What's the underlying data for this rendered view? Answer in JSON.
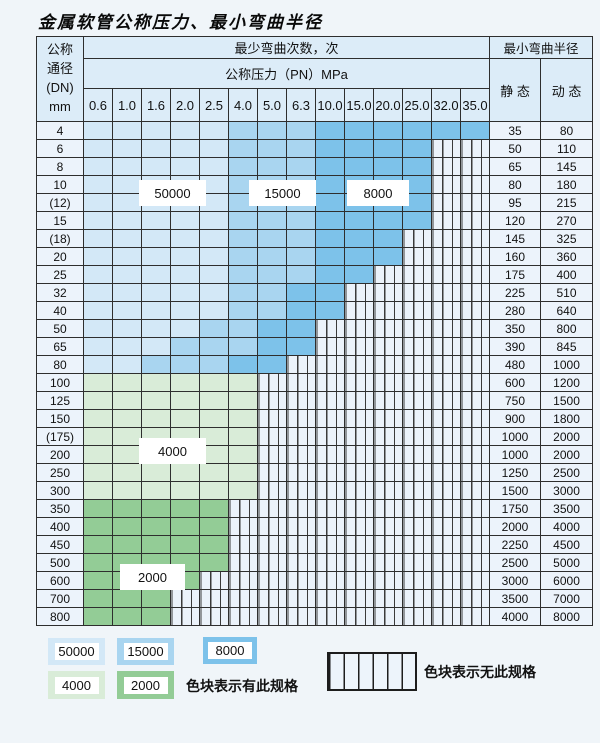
{
  "title": "金属软管公称压力、最小弯曲半径",
  "colors": {
    "v50000": "#d3e8f7",
    "v15000": "#a9d5f0",
    "v8000": "#7dc2ea",
    "v4000": "#d9ecd8",
    "v2000": "#93cc96",
    "hatch_background": "#ebf2fa",
    "grid_line": "#2e2e2e",
    "header_background": "#dcecf8",
    "label_column_background": "#ecf3fb"
  },
  "table": {
    "dn_header_lines": [
      "公称",
      "通径",
      "(DN)",
      "mm"
    ],
    "bend_times_header": "最少弯曲次数，次",
    "pressure_header": "公称压力（PN）MPa",
    "radius_header": "最小弯曲半径",
    "static_header": "静 态",
    "dynamic_header": "动 态",
    "pressures": [
      "0.6",
      "1.0",
      "1.6",
      "2.0",
      "2.5",
      "4.0",
      "5.0",
      "6.3",
      "10.0",
      "15.0",
      "20.0",
      "25.0",
      "32.0",
      "35.0"
    ],
    "rows": [
      {
        "dn": "4",
        "cells": [
          "50000",
          "50000",
          "50000",
          "50000",
          "50000",
          "15000",
          "15000",
          "15000",
          "8000",
          "8000",
          "8000",
          "8000",
          "8000",
          "8000"
        ],
        "static": "35",
        "dynamic": "80"
      },
      {
        "dn": "6",
        "cells": [
          "50000",
          "50000",
          "50000",
          "50000",
          "50000",
          "15000",
          "15000",
          "15000",
          "8000",
          "8000",
          "8000",
          "8000",
          "none",
          "none"
        ],
        "static": "50",
        "dynamic": "110"
      },
      {
        "dn": "8",
        "cells": [
          "50000",
          "50000",
          "50000",
          "50000",
          "50000",
          "15000",
          "15000",
          "15000",
          "8000",
          "8000",
          "8000",
          "8000",
          "none",
          "none"
        ],
        "static": "65",
        "dynamic": "145"
      },
      {
        "dn": "10",
        "cells": [
          "50000",
          "50000",
          "50000",
          "50000",
          "50000",
          "15000",
          "15000",
          "15000",
          "8000",
          "8000",
          "8000",
          "8000",
          "none",
          "none"
        ],
        "static": "80",
        "dynamic": "180"
      },
      {
        "dn": "(12)",
        "cells": [
          "50000",
          "50000",
          "50000",
          "50000",
          "50000",
          "15000",
          "15000",
          "15000",
          "8000",
          "8000",
          "8000",
          "8000",
          "none",
          "none"
        ],
        "static": "95",
        "dynamic": "215"
      },
      {
        "dn": "15",
        "cells": [
          "50000",
          "50000",
          "50000",
          "50000",
          "50000",
          "15000",
          "15000",
          "15000",
          "8000",
          "8000",
          "8000",
          "8000",
          "none",
          "none"
        ],
        "static": "120",
        "dynamic": "270"
      },
      {
        "dn": "(18)",
        "cells": [
          "50000",
          "50000",
          "50000",
          "50000",
          "50000",
          "15000",
          "15000",
          "15000",
          "8000",
          "8000",
          "8000",
          "none",
          "none",
          "none"
        ],
        "static": "145",
        "dynamic": "325"
      },
      {
        "dn": "20",
        "cells": [
          "50000",
          "50000",
          "50000",
          "50000",
          "50000",
          "15000",
          "15000",
          "15000",
          "8000",
          "8000",
          "8000",
          "none",
          "none",
          "none"
        ],
        "static": "160",
        "dynamic": "360"
      },
      {
        "dn": "25",
        "cells": [
          "50000",
          "50000",
          "50000",
          "50000",
          "50000",
          "15000",
          "15000",
          "15000",
          "8000",
          "8000",
          "none",
          "none",
          "none",
          "none"
        ],
        "static": "175",
        "dynamic": "400"
      },
      {
        "dn": "32",
        "cells": [
          "50000",
          "50000",
          "50000",
          "50000",
          "50000",
          "15000",
          "15000",
          "8000",
          "8000",
          "none",
          "none",
          "none",
          "none",
          "none"
        ],
        "static": "225",
        "dynamic": "510"
      },
      {
        "dn": "40",
        "cells": [
          "50000",
          "50000",
          "50000",
          "50000",
          "50000",
          "15000",
          "15000",
          "8000",
          "8000",
          "none",
          "none",
          "none",
          "none",
          "none"
        ],
        "static": "280",
        "dynamic": "640"
      },
      {
        "dn": "50",
        "cells": [
          "50000",
          "50000",
          "50000",
          "50000",
          "15000",
          "15000",
          "8000",
          "8000",
          "none",
          "none",
          "none",
          "none",
          "none",
          "none"
        ],
        "static": "350",
        "dynamic": "800"
      },
      {
        "dn": "65",
        "cells": [
          "50000",
          "50000",
          "50000",
          "15000",
          "15000",
          "15000",
          "8000",
          "8000",
          "none",
          "none",
          "none",
          "none",
          "none",
          "none"
        ],
        "static": "390",
        "dynamic": "845"
      },
      {
        "dn": "80",
        "cells": [
          "50000",
          "50000",
          "15000",
          "15000",
          "15000",
          "8000",
          "8000",
          "none",
          "none",
          "none",
          "none",
          "none",
          "none",
          "none"
        ],
        "static": "480",
        "dynamic": "1000"
      },
      {
        "dn": "100",
        "cells": [
          "4000",
          "4000",
          "4000",
          "4000",
          "4000",
          "4000",
          "none",
          "none",
          "none",
          "none",
          "none",
          "none",
          "none",
          "none"
        ],
        "static": "600",
        "dynamic": "1200"
      },
      {
        "dn": "125",
        "cells": [
          "4000",
          "4000",
          "4000",
          "4000",
          "4000",
          "4000",
          "none",
          "none",
          "none",
          "none",
          "none",
          "none",
          "none",
          "none"
        ],
        "static": "750",
        "dynamic": "1500"
      },
      {
        "dn": "150",
        "cells": [
          "4000",
          "4000",
          "4000",
          "4000",
          "4000",
          "4000",
          "none",
          "none",
          "none",
          "none",
          "none",
          "none",
          "none",
          "none"
        ],
        "static": "900",
        "dynamic": "1800"
      },
      {
        "dn": "(175)",
        "cells": [
          "4000",
          "4000",
          "4000",
          "4000",
          "4000",
          "4000",
          "none",
          "none",
          "none",
          "none",
          "none",
          "none",
          "none",
          "none"
        ],
        "static": "1000",
        "dynamic": "2000"
      },
      {
        "dn": "200",
        "cells": [
          "4000",
          "4000",
          "4000",
          "4000",
          "4000",
          "4000",
          "none",
          "none",
          "none",
          "none",
          "none",
          "none",
          "none",
          "none"
        ],
        "static": "1000",
        "dynamic": "2000"
      },
      {
        "dn": "250",
        "cells": [
          "4000",
          "4000",
          "4000",
          "4000",
          "4000",
          "4000",
          "none",
          "none",
          "none",
          "none",
          "none",
          "none",
          "none",
          "none"
        ],
        "static": "1250",
        "dynamic": "2500"
      },
      {
        "dn": "300",
        "cells": [
          "4000",
          "4000",
          "4000",
          "4000",
          "4000",
          "4000",
          "none",
          "none",
          "none",
          "none",
          "none",
          "none",
          "none",
          "none"
        ],
        "static": "1500",
        "dynamic": "3000"
      },
      {
        "dn": "350",
        "cells": [
          "2000",
          "2000",
          "2000",
          "2000",
          "2000",
          "none",
          "none",
          "none",
          "none",
          "none",
          "none",
          "none",
          "none",
          "none"
        ],
        "static": "1750",
        "dynamic": "3500"
      },
      {
        "dn": "400",
        "cells": [
          "2000",
          "2000",
          "2000",
          "2000",
          "2000",
          "none",
          "none",
          "none",
          "none",
          "none",
          "none",
          "none",
          "none",
          "none"
        ],
        "static": "2000",
        "dynamic": "4000"
      },
      {
        "dn": "450",
        "cells": [
          "2000",
          "2000",
          "2000",
          "2000",
          "2000",
          "none",
          "none",
          "none",
          "none",
          "none",
          "none",
          "none",
          "none",
          "none"
        ],
        "static": "2250",
        "dynamic": "4500"
      },
      {
        "dn": "500",
        "cells": [
          "2000",
          "2000",
          "2000",
          "2000",
          "2000",
          "none",
          "none",
          "none",
          "none",
          "none",
          "none",
          "none",
          "none",
          "none"
        ],
        "static": "2500",
        "dynamic": "5000"
      },
      {
        "dn": "600",
        "cells": [
          "2000",
          "2000",
          "2000",
          "2000",
          "none",
          "none",
          "none",
          "none",
          "none",
          "none",
          "none",
          "none",
          "none",
          "none"
        ],
        "static": "3000",
        "dynamic": "6000"
      },
      {
        "dn": "700",
        "cells": [
          "2000",
          "2000",
          "2000",
          "none",
          "none",
          "none",
          "none",
          "none",
          "none",
          "none",
          "none",
          "none",
          "none",
          "none"
        ],
        "static": "3500",
        "dynamic": "7000"
      },
      {
        "dn": "800",
        "cells": [
          "2000",
          "2000",
          "2000",
          "none",
          "none",
          "none",
          "none",
          "none",
          "none",
          "none",
          "none",
          "none",
          "none",
          "none"
        ],
        "static": "4000",
        "dynamic": "8000"
      }
    ]
  },
  "overlay_labels": [
    {
      "text": "50000"
    },
    {
      "text": "15000"
    },
    {
      "text": "8000"
    },
    {
      "text": "4000"
    },
    {
      "text": "2000"
    }
  ],
  "legend": {
    "spec_items": [
      {
        "value": "50000",
        "category": "50000"
      },
      {
        "value": "15000",
        "category": "15000"
      },
      {
        "value": "8000",
        "category": "8000"
      },
      {
        "value": "4000",
        "category": "4000"
      },
      {
        "value": "2000",
        "category": "2000"
      }
    ],
    "has_spec_text": "色块表示有此规格",
    "no_spec_text": "色块表示无此规格"
  }
}
